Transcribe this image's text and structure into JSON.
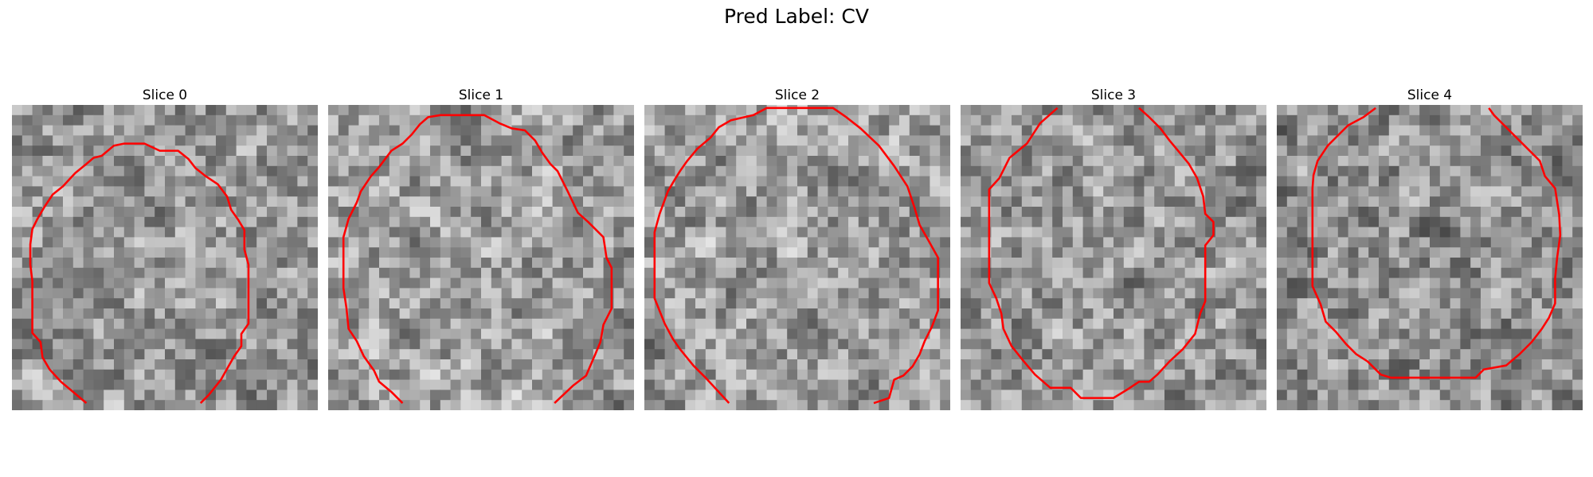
{
  "figure": {
    "title": "Pred Label: CV"
  },
  "panels": [
    {
      "title": "Slice 0",
      "seed": 11,
      "tone": 0.0
    },
    {
      "title": "Slice 1",
      "seed": 23,
      "tone": 0.03
    },
    {
      "title": "Slice 2",
      "seed": 37,
      "tone": 0.02
    },
    {
      "title": "Slice 3",
      "seed": 41,
      "tone": 0.0
    },
    {
      "title": "Slice 4",
      "seed": 59,
      "tone": -0.05
    }
  ],
  "colors": {
    "contour": "#ff0000",
    "background": "#ffffff"
  }
}
